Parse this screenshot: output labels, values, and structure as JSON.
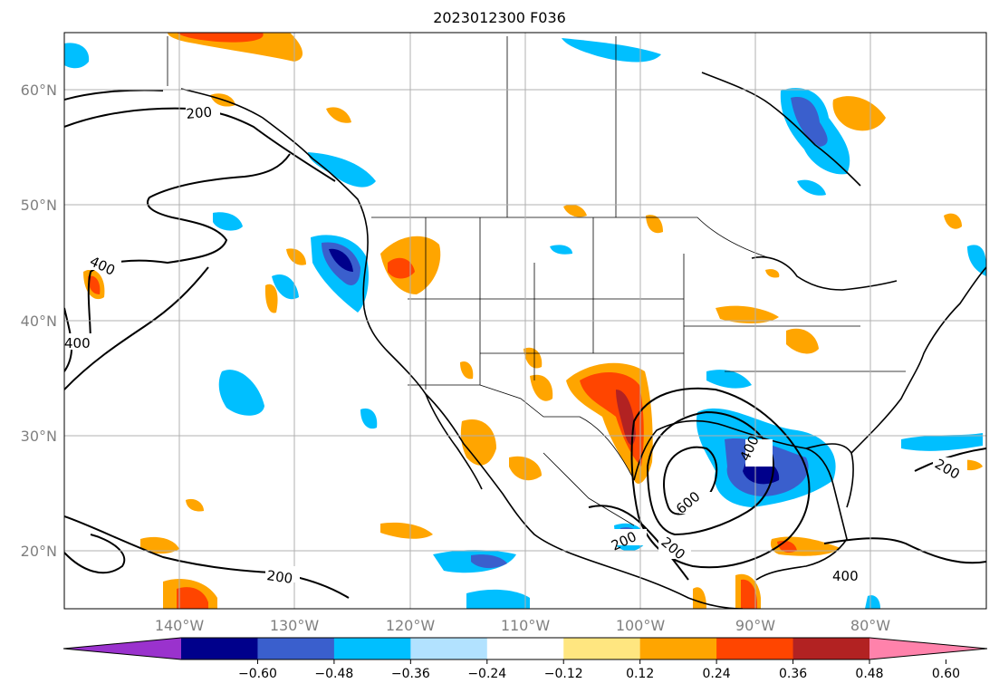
{
  "title": "2023012300 F036",
  "latitude_labels": [
    "20°N",
    "30°N",
    "40°N",
    "50°N",
    "60°N"
  ],
  "longitude_labels": [
    "140°W",
    "130°W",
    "120°W",
    "110°W",
    "100°W",
    "90°W",
    "80°W"
  ],
  "contour_labels": [
    "200",
    "400",
    "400",
    "200",
    "200",
    "400",
    "600",
    "200",
    "400",
    "200"
  ],
  "colorbar": {
    "ticks": [
      "−0.60",
      "−0.48",
      "−0.36",
      "−0.24",
      "−0.12",
      "0.12",
      "0.24",
      "0.36",
      "0.48",
      "0.60"
    ],
    "colors": [
      "#9a32cd",
      "#00008b",
      "#3a5fcd",
      "#00bfff",
      "#b2e2ff",
      "#ffffff",
      "#ffe680",
      "#ffa500",
      "#ff4500",
      "#b22222",
      "#ff82ab"
    ]
  },
  "colors": {
    "strong_negative": "#00008b",
    "moderate_negative": "#3a5fcd",
    "weak_negative": "#00bfff",
    "faint_negative": "#b2e2ff",
    "faint_positive": "#ffe680",
    "weak_positive": "#ffa500",
    "moderate_positive": "#ff4500",
    "strong_positive": "#b22222"
  }
}
